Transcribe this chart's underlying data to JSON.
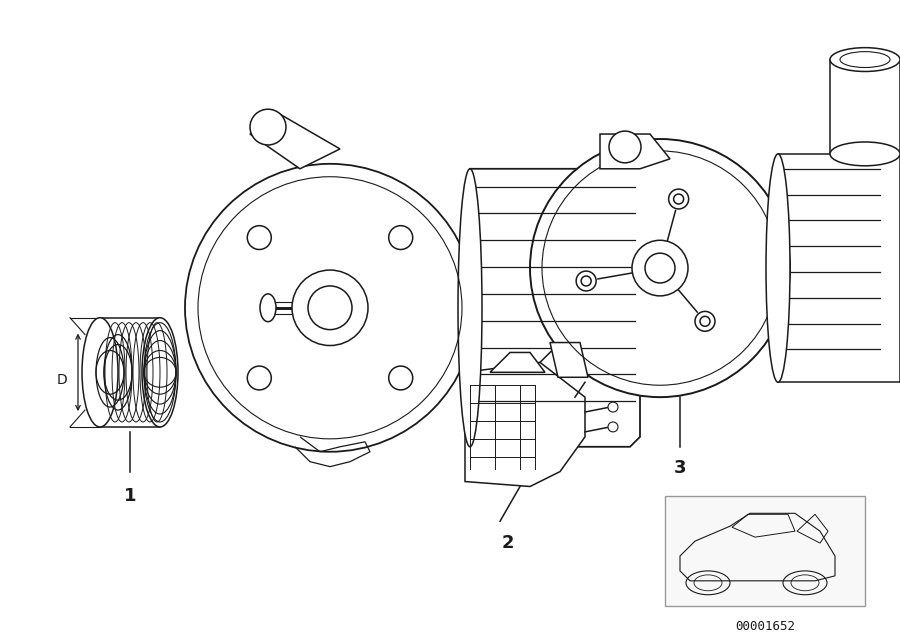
{
  "bg_color": "#ffffff",
  "line_color": "#1a1a1a",
  "lw": 1.1,
  "fig_width": 9.0,
  "fig_height": 6.35,
  "ref_number": "00001652",
  "dim_label": "D",
  "label1": "1",
  "label2": "2",
  "label3": "3",
  "box_color": "#cccccc"
}
